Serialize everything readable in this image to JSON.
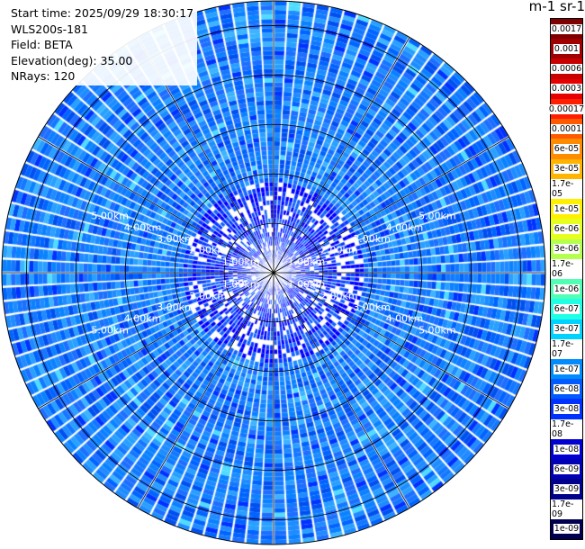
{
  "info": {
    "start_time": "Start time: 2025/09/29 18:30:17",
    "instrument": "WLS200s-181",
    "field": "Field: BETA",
    "elevation": "Elevation(deg): 35.00",
    "nrays": "NRays: 120"
  },
  "colorbar": {
    "title": "m-1 sr-1",
    "labels": [
      "0.0017",
      "0.001",
      "0.0006",
      "0.0003",
      "0.00017",
      "0.0001",
      "6e-05",
      "3e-05",
      "1.7e-05",
      "1e-05",
      "6e-06",
      "3e-06",
      "1.7e-06",
      "1e-06",
      "6e-07",
      "3e-07",
      "1.7e-07",
      "1e-07",
      "6e-08",
      "3e-08",
      "1.7e-08",
      "1e-08",
      "6e-09",
      "3e-09",
      "1.7e-09",
      "1e-09"
    ],
    "colors": [
      "#7f0000",
      "#a00000",
      "#c80000",
      "#e60000",
      "#ff1e00",
      "#ff5a00",
      "#ff8c00",
      "#ffb400",
      "#ffd200",
      "#fff000",
      "#e6ff1e",
      "#b4ff50",
      "#82ff82",
      "#50ffb4",
      "#1effe6",
      "#00d2ff",
      "#00b4ff",
      "#008cff",
      "#005aff",
      "#0032ff",
      "#0000ff",
      "#0000d2",
      "#0000b4",
      "#00008c",
      "#00006e",
      "#000050"
    ]
  },
  "ring_labels": [
    "1.00km",
    "2.00km",
    "3.00km",
    "4.00km",
    "5.00km"
  ],
  "ppi": {
    "nrays": 120,
    "max_range_km": 5.5,
    "dominant_level": "3e-08"
  }
}
